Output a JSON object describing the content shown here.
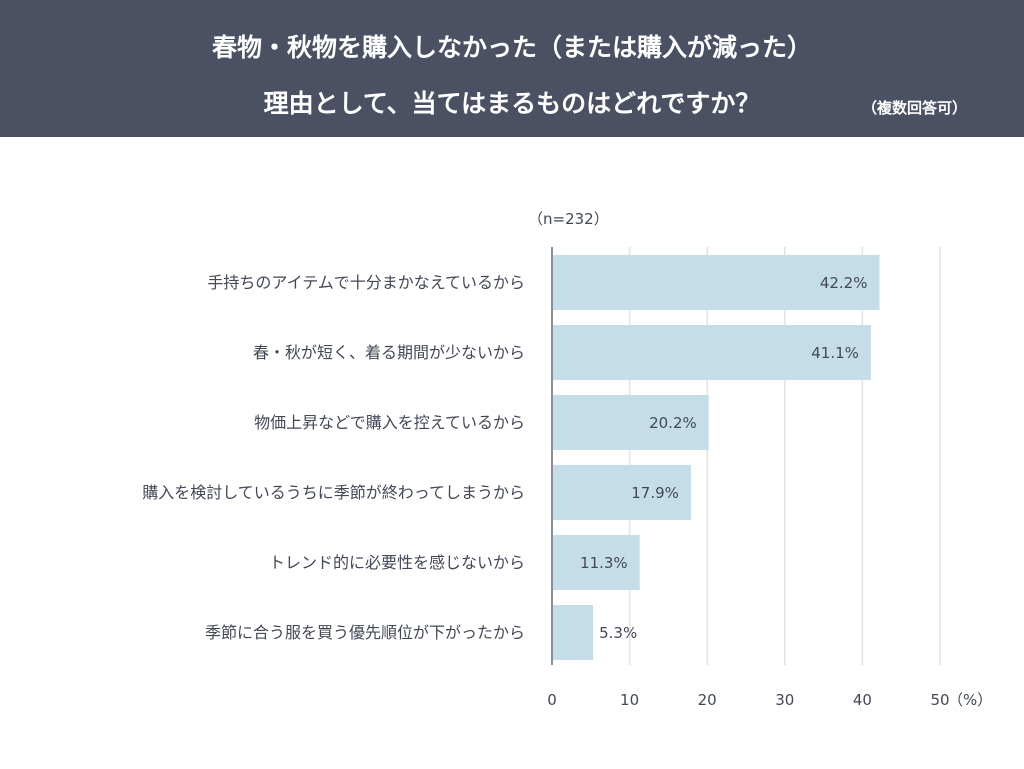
{
  "header": {
    "title_line1": "春物・秋物を購入しなかった（または購入が減った）",
    "title_line2": "理由として、当てはまるものはどれですか？",
    "note": "（複数回答可）"
  },
  "chart_data": {
    "type": "bar",
    "orientation": "horizontal",
    "sample": "（n=232）",
    "categories": [
      "手持ちのアイテムで十分まかなえているから",
      "春・秋が短く、着る期間が少ないから",
      "物価上昇などで購入を控えているから",
      "購入を検討しているうちに季節が終わってしまうから",
      "トレンド的に必要性を感じないから",
      "季節に合う服を買う優先順位が下がったから"
    ],
    "values": [
      42.2,
      41.1,
      20.2,
      17.9,
      11.3,
      5.3
    ],
    "value_labels": [
      "42.2%",
      "41.1%",
      "20.2%",
      "17.9%",
      "11.3%",
      "5.3%"
    ],
    "xlim": [
      0,
      50
    ],
    "xticks": [
      "0",
      "10",
      "20",
      "30",
      "40",
      "50"
    ],
    "xunit": "（%）",
    "grid": true,
    "bar_color": "#c5dde9",
    "header_color": "#4b5162"
  }
}
